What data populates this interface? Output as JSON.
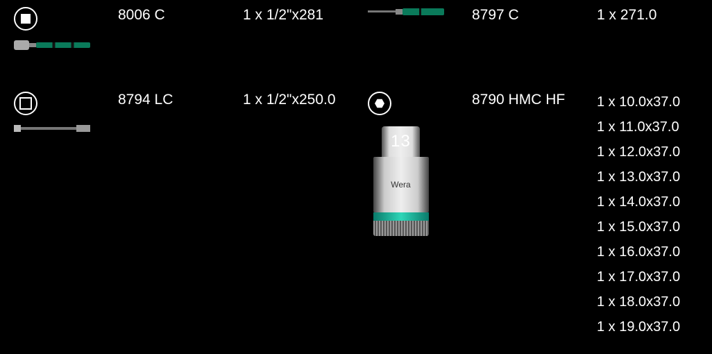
{
  "items": [
    {
      "icon": "square-solid",
      "tool": "ratchet",
      "name": "8006 C",
      "sizes": [
        "1 x 1/2\"x281"
      ]
    },
    {
      "icon": "none",
      "tool": "driver",
      "name": "8797 C",
      "sizes": [
        "1 x 271.0"
      ]
    },
    {
      "icon": "square-outline",
      "tool": "extension",
      "name": "8794 LC",
      "sizes": [
        "1 x 1/2\"x250.0"
      ]
    },
    {
      "icon": "hex",
      "tool": "socket",
      "socket_label": "13",
      "brand": "Wera",
      "name": "8790 HMC HF",
      "sizes": [
        "1 x 10.0x37.0",
        "1 x 11.0x37.0",
        "1 x 12.0x37.0",
        "1 x 13.0x37.0",
        "1 x 14.0x37.0",
        "1 x 15.0x37.0",
        "1 x 16.0x37.0",
        "1 x 17.0x37.0",
        "1 x 18.0x37.0",
        "1 x 19.0x37.0"
      ]
    }
  ],
  "colors": {
    "background": "#000000",
    "text": "#ffffff",
    "accent": "#1fbf9c"
  }
}
